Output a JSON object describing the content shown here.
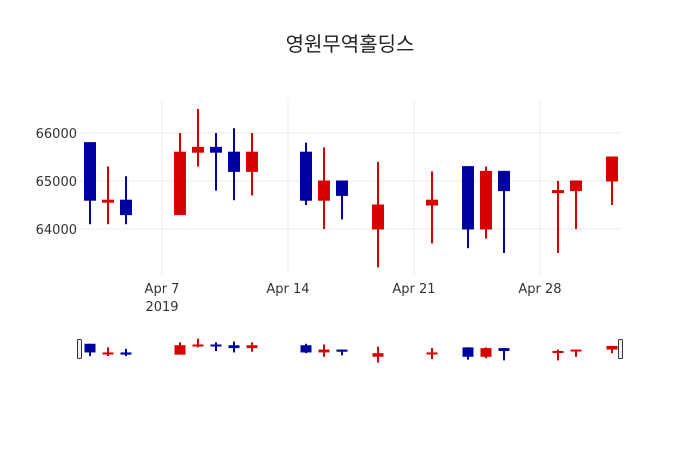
{
  "chart_data": {
    "type": "candlestick",
    "title": "영원무역홀딩스",
    "xlabel": "",
    "ylabel": "",
    "ylim": [
      63000,
      66800
    ],
    "yticks": [
      64000,
      65000,
      66000
    ],
    "ytick_labels": [
      "64000",
      "65000",
      "66000"
    ],
    "xticks": [
      {
        "date": "2019-04-07",
        "label": "Apr 7",
        "sublabel": "2019"
      },
      {
        "date": "2019-04-14",
        "label": "Apr 14",
        "sublabel": ""
      },
      {
        "date": "2019-04-21",
        "label": "Apr 21",
        "sublabel": ""
      },
      {
        "date": "2019-04-28",
        "label": "Apr 28",
        "sublabel": ""
      }
    ],
    "grid": true,
    "rangeslider": true,
    "increasing_color": "#d60000",
    "decreasing_color": "#0000a0",
    "candles": [
      {
        "date": "2019-04-03",
        "open": 65800,
        "high": 65800,
        "low": 64100,
        "close": 64600
      },
      {
        "date": "2019-04-04",
        "open": 64600,
        "high": 65300,
        "low": 64100,
        "close": 64600
      },
      {
        "date": "2019-04-05",
        "open": 64600,
        "high": 65100,
        "low": 64100,
        "close": 64300
      },
      {
        "date": "2019-04-08",
        "open": 64300,
        "high": 66000,
        "low": 64300,
        "close": 65600
      },
      {
        "date": "2019-04-09",
        "open": 65600,
        "high": 66500,
        "low": 65300,
        "close": 65700
      },
      {
        "date": "2019-04-10",
        "open": 65700,
        "high": 66000,
        "low": 64800,
        "close": 65600
      },
      {
        "date": "2019-04-11",
        "open": 65600,
        "high": 66100,
        "low": 64600,
        "close": 65200
      },
      {
        "date": "2019-04-12",
        "open": 65200,
        "high": 66000,
        "low": 64700,
        "close": 65600
      },
      {
        "date": "2019-04-15",
        "open": 65600,
        "high": 65800,
        "low": 64500,
        "close": 64600
      },
      {
        "date": "2019-04-16",
        "open": 64600,
        "high": 65700,
        "low": 64000,
        "close": 65000
      },
      {
        "date": "2019-04-17",
        "open": 65000,
        "high": 65000,
        "low": 64200,
        "close": 64700
      },
      {
        "date": "2019-04-19",
        "open": 64000,
        "high": 65400,
        "low": 63200,
        "close": 64500
      },
      {
        "date": "2019-04-22",
        "open": 64500,
        "high": 65200,
        "low": 63700,
        "close": 64600
      },
      {
        "date": "2019-04-24",
        "open": 65300,
        "high": 65300,
        "low": 63600,
        "close": 64000
      },
      {
        "date": "2019-04-25",
        "open": 64000,
        "high": 65300,
        "low": 63800,
        "close": 65200
      },
      {
        "date": "2019-04-26",
        "open": 65200,
        "high": 65200,
        "low": 63500,
        "close": 64800
      },
      {
        "date": "2019-04-29",
        "open": 64800,
        "high": 65000,
        "low": 63500,
        "close": 64800
      },
      {
        "date": "2019-04-30",
        "open": 64800,
        "high": 65000,
        "low": 64000,
        "close": 65000
      },
      {
        "date": "2019-05-02",
        "open": 65000,
        "high": 65500,
        "low": 64500,
        "close": 65500
      }
    ]
  }
}
